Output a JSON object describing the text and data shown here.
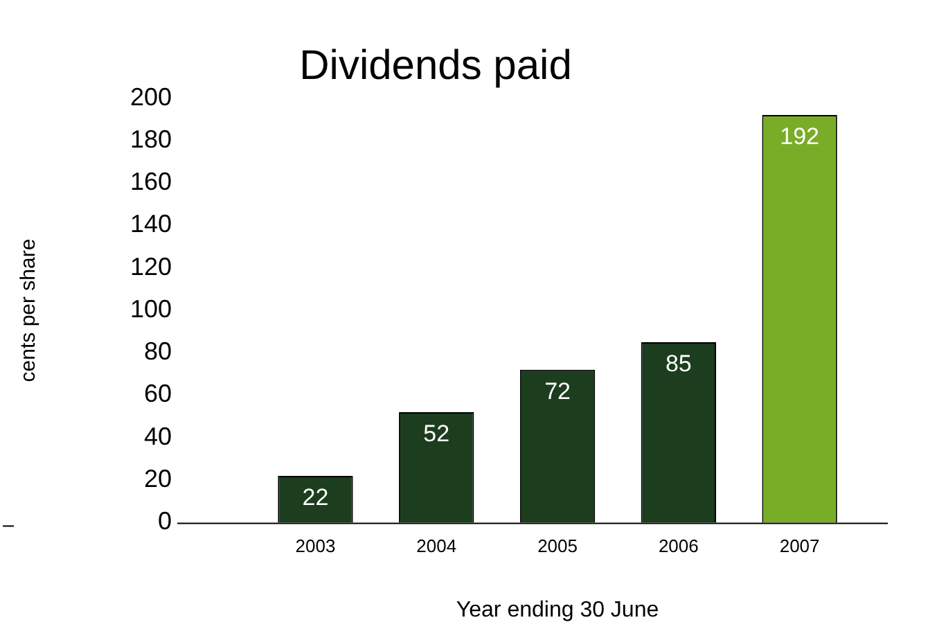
{
  "chart_data": {
    "type": "bar",
    "title": "Dividends paid",
    "xlabel": "Year ending 30 June",
    "ylabel": "cents per share",
    "categories": [
      "2003",
      "2004",
      "2005",
      "2006",
      "2007"
    ],
    "values": [
      22,
      52,
      72,
      85,
      192
    ],
    "colors": [
      "#1c3d1e",
      "#1c3d1e",
      "#1c3d1e",
      "#1c3d1e",
      "#7aad27"
    ],
    "ylim": [
      0,
      200
    ],
    "yticks": [
      0,
      20,
      40,
      60,
      80,
      100,
      120,
      140,
      160,
      180,
      200
    ],
    "grid": false,
    "legend": false,
    "data_labels": true
  }
}
